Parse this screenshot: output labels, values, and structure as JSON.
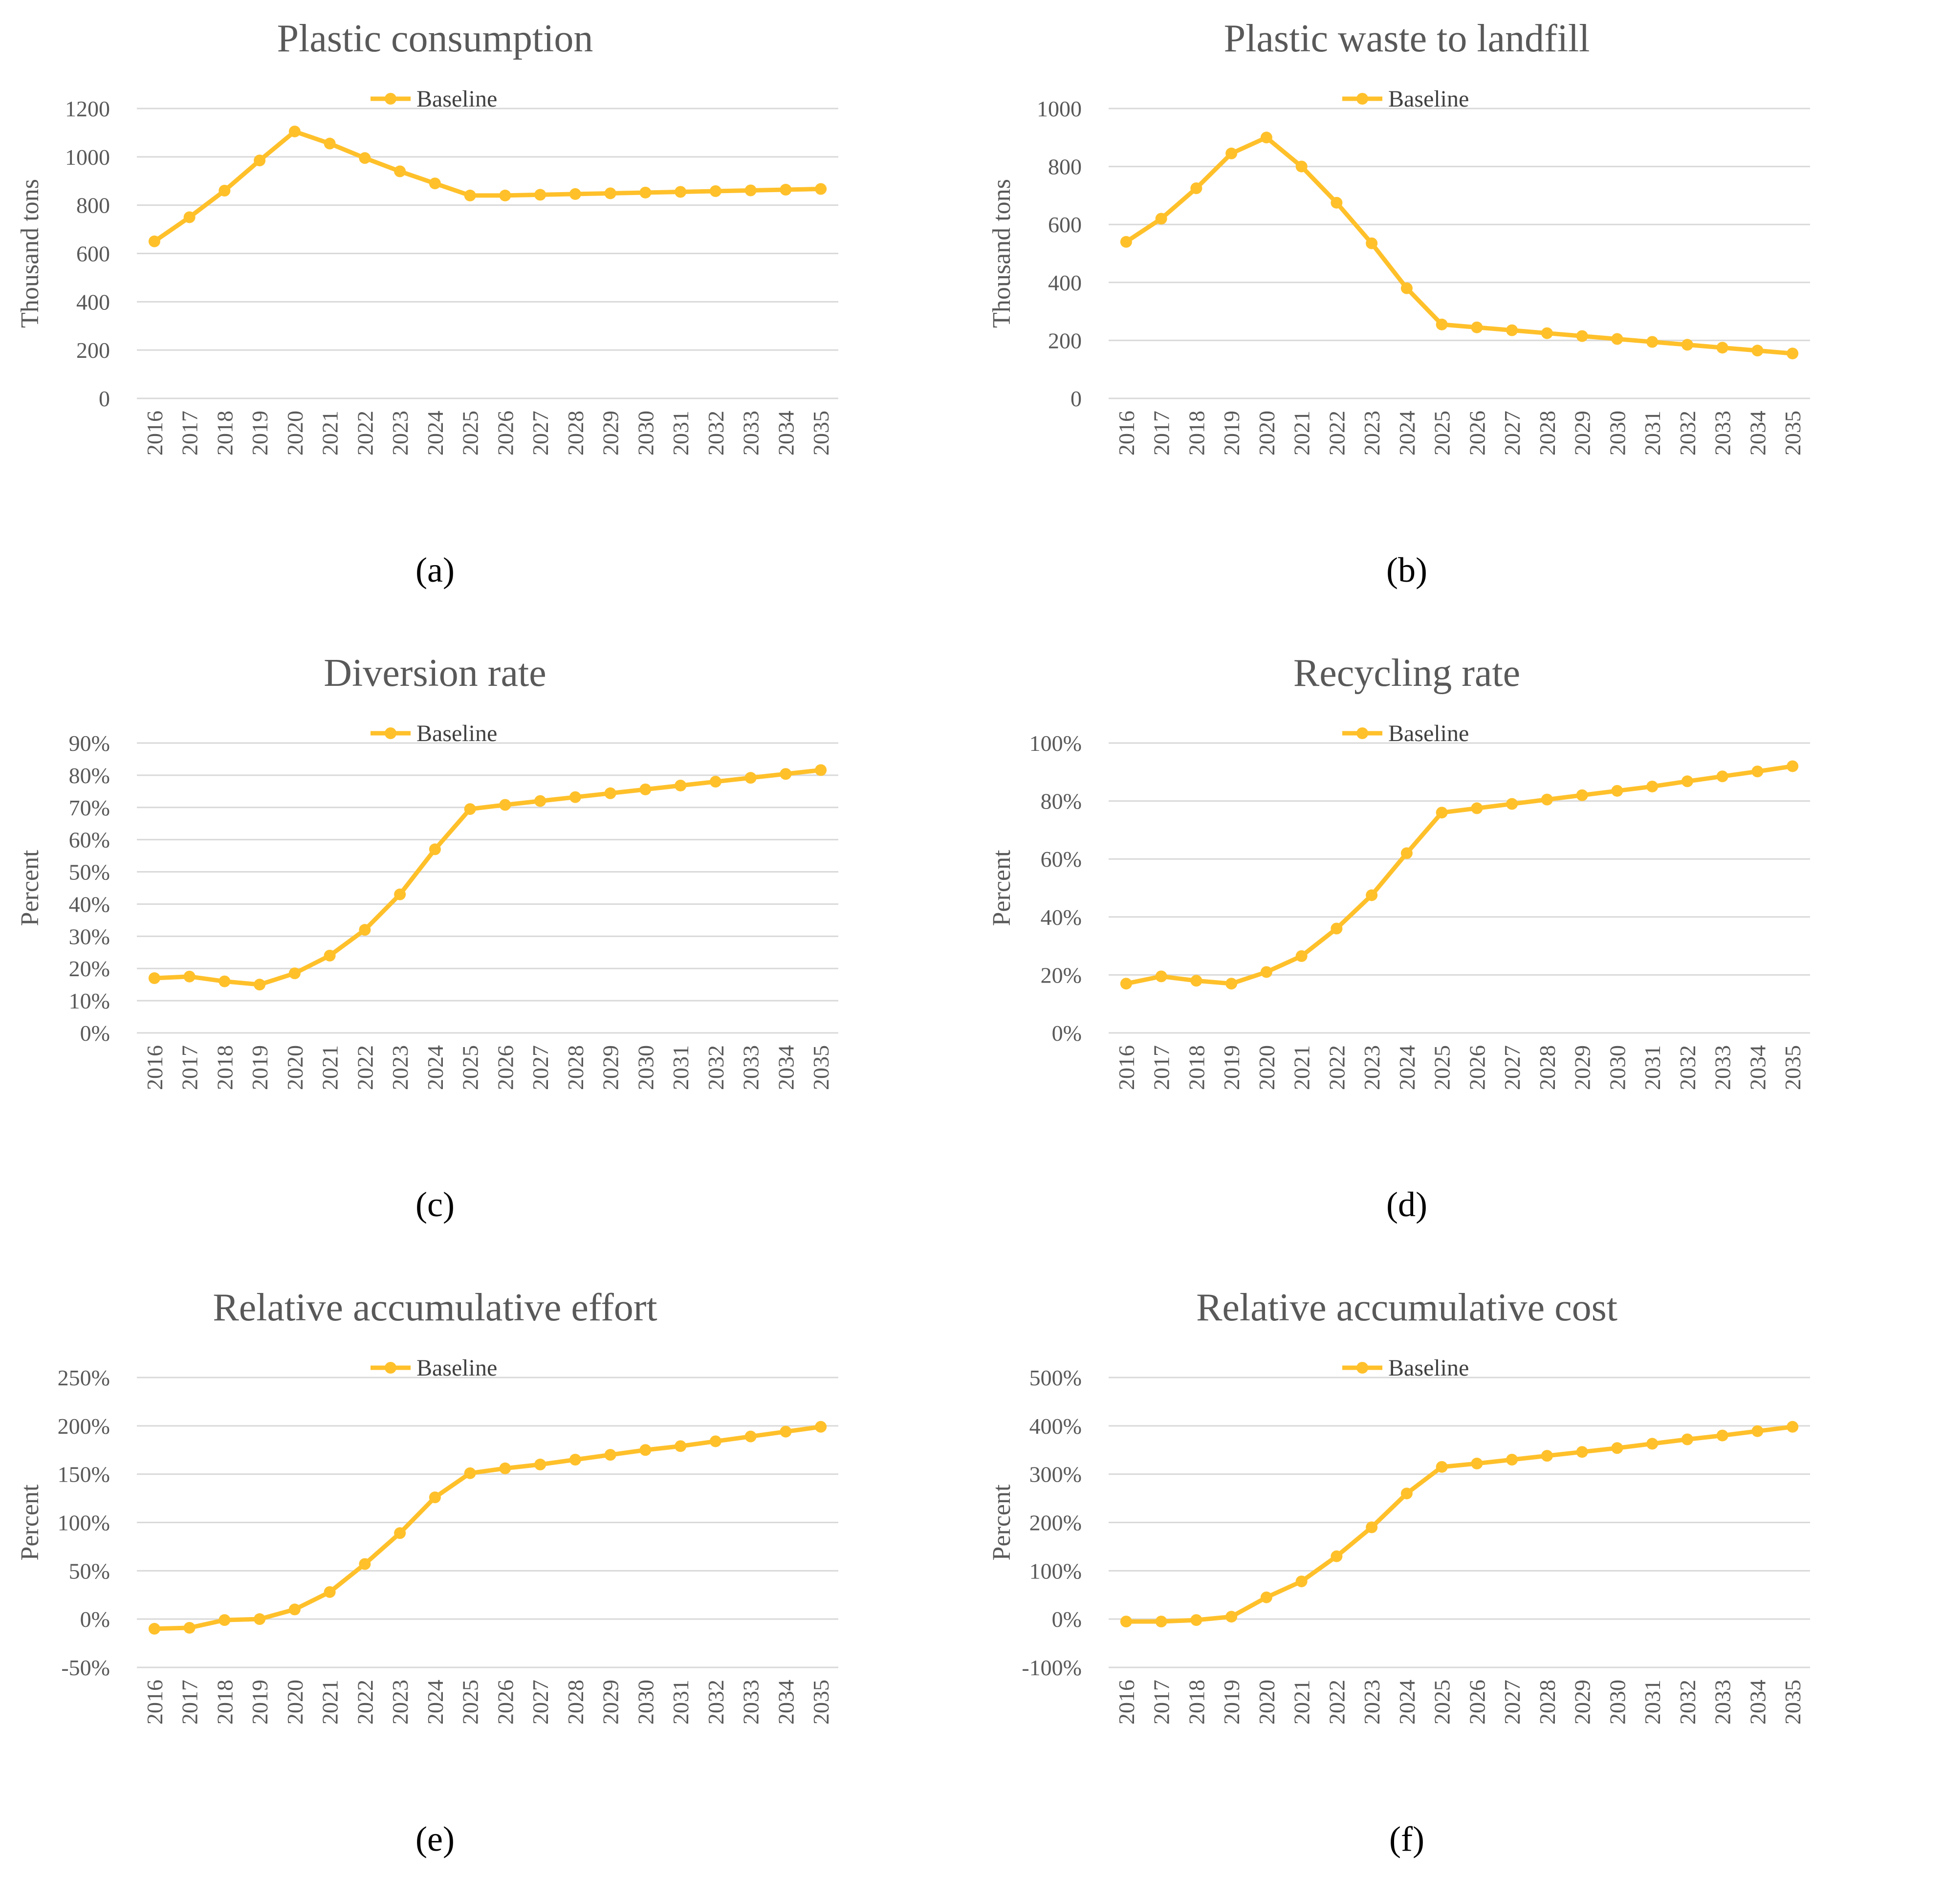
{
  "figure": {
    "series_color": "#FFC02A",
    "series_name": "Baseline"
  },
  "chart_data": [
    {
      "type": "line",
      "title": "Plastic consumption",
      "caption": "(a)",
      "xlabel": "",
      "ylabel": "Thousand tons",
      "legend": "top-center",
      "grid": true,
      "categories": [
        "2016",
        "2017",
        "2018",
        "2019",
        "2020",
        "2021",
        "2022",
        "2023",
        "2024",
        "2025",
        "2026",
        "2027",
        "2028",
        "2029",
        "2030",
        "2031",
        "2032",
        "2033",
        "2034",
        "2035"
      ],
      "ylim": [
        0,
        1200
      ],
      "yticks": [
        0,
        200,
        400,
        600,
        800,
        1000,
        1200
      ],
      "yticklabels": [
        "0",
        "200",
        "400",
        "600",
        "800",
        "1000",
        "1200"
      ],
      "series": [
        {
          "name": "Baseline",
          "values": [
            650,
            750,
            860,
            985,
            1105,
            1055,
            995,
            940,
            890,
            840,
            840,
            843,
            846,
            849,
            852,
            855,
            858,
            861,
            864,
            867
          ]
        }
      ]
    },
    {
      "type": "line",
      "title": "Plastic waste to landfill",
      "caption": "(b)",
      "xlabel": "",
      "ylabel": "Thousand tons",
      "legend": "top-center",
      "grid": true,
      "categories": [
        "2016",
        "2017",
        "2018",
        "2019",
        "2020",
        "2021",
        "2022",
        "2023",
        "2024",
        "2025",
        "2026",
        "2027",
        "2028",
        "2029",
        "2030",
        "2031",
        "2032",
        "2033",
        "2034",
        "2035"
      ],
      "ylim": [
        0,
        1000
      ],
      "yticks": [
        0,
        200,
        400,
        600,
        800,
        1000
      ],
      "yticklabels": [
        "0",
        "200",
        "400",
        "600",
        "800",
        "1000"
      ],
      "series": [
        {
          "name": "Baseline",
          "values": [
            540,
            620,
            725,
            845,
            900,
            800,
            675,
            535,
            380,
            255,
            245,
            235,
            225,
            215,
            205,
            195,
            185,
            175,
            165,
            155
          ]
        }
      ]
    },
    {
      "type": "line",
      "title": "Diversion rate",
      "caption": "(c)",
      "xlabel": "",
      "ylabel": "Percent",
      "legend": "top-center",
      "grid": true,
      "categories": [
        "2016",
        "2017",
        "2018",
        "2019",
        "2020",
        "2021",
        "2022",
        "2023",
        "2024",
        "2025",
        "2026",
        "2027",
        "2028",
        "2029",
        "2030",
        "2031",
        "2032",
        "2033",
        "2034",
        "2035"
      ],
      "ylim": [
        0,
        90
      ],
      "yticks": [
        0,
        10,
        20,
        30,
        40,
        50,
        60,
        70,
        80,
        90
      ],
      "yticklabels": [
        "0%",
        "10%",
        "20%",
        "30%",
        "40%",
        "50%",
        "60%",
        "70%",
        "80%",
        "90%"
      ],
      "series": [
        {
          "name": "Baseline",
          "values": [
            17,
            17.5,
            16,
            15,
            18.5,
            24,
            32,
            43,
            57,
            69.5,
            70.8,
            72,
            73.2,
            74.4,
            75.6,
            76.8,
            78,
            79.2,
            80.4,
            81.6
          ]
        }
      ]
    },
    {
      "type": "line",
      "title": "Recycling rate",
      "caption": "(d)",
      "xlabel": "",
      "ylabel": "Percent",
      "legend": "top-center",
      "grid": true,
      "categories": [
        "2016",
        "2017",
        "2018",
        "2019",
        "2020",
        "2021",
        "2022",
        "2023",
        "2024",
        "2025",
        "2026",
        "2027",
        "2028",
        "2029",
        "2030",
        "2031",
        "2032",
        "2033",
        "2034",
        "2035"
      ],
      "ylim": [
        0,
        100
      ],
      "yticks": [
        0,
        20,
        40,
        60,
        80,
        100
      ],
      "yticklabels": [
        "0%",
        "20%",
        "40%",
        "60%",
        "80%",
        "100%"
      ],
      "series": [
        {
          "name": "Baseline",
          "values": [
            17,
            19.5,
            18,
            17,
            21,
            26.5,
            36,
            47.5,
            62,
            76,
            77.5,
            79,
            80.5,
            82,
            83.5,
            85,
            86.8,
            88.5,
            90.2,
            92
          ]
        }
      ]
    },
    {
      "type": "line",
      "title": "Relative accumulative effort",
      "caption": "(e)",
      "xlabel": "",
      "ylabel": "Percent",
      "legend": "top-center",
      "grid": true,
      "categories": [
        "2016",
        "2017",
        "2018",
        "2019",
        "2020",
        "2021",
        "2022",
        "2023",
        "2024",
        "2025",
        "2026",
        "2027",
        "2028",
        "2029",
        "2030",
        "2031",
        "2032",
        "2033",
        "2034",
        "2035"
      ],
      "ylim": [
        -50,
        250
      ],
      "yticks": [
        -50,
        0,
        50,
        100,
        150,
        200,
        250
      ],
      "yticklabels": [
        "-50%",
        "0%",
        "50%",
        "100%",
        "150%",
        "200%",
        "250%"
      ],
      "series": [
        {
          "name": "Baseline",
          "values": [
            -10,
            -9,
            -1,
            0,
            10,
            28,
            57,
            89,
            126,
            151,
            156,
            160,
            165,
            170,
            175,
            179,
            184,
            189,
            194,
            199
          ]
        }
      ]
    },
    {
      "type": "line",
      "title": "Relative accumulative cost",
      "caption": "(f)",
      "xlabel": "",
      "ylabel": "Percent",
      "legend": "top-center",
      "grid": true,
      "categories": [
        "2016",
        "2017",
        "2018",
        "2019",
        "2020",
        "2021",
        "2022",
        "2023",
        "2024",
        "2025",
        "2026",
        "2027",
        "2028",
        "2029",
        "2030",
        "2031",
        "2032",
        "2033",
        "2034",
        "2035"
      ],
      "ylim": [
        -100,
        500
      ],
      "yticks": [
        -100,
        0,
        100,
        200,
        300,
        400,
        500
      ],
      "yticklabels": [
        "-100%",
        "0%",
        "100%",
        "200%",
        "300%",
        "400%",
        "500%"
      ],
      "series": [
        {
          "name": "Baseline",
          "values": [
            -5,
            -5,
            -2,
            5,
            45,
            78,
            130,
            190,
            260,
            315,
            322,
            330,
            338,
            346,
            354,
            363,
            372,
            380,
            389,
            398
          ]
        }
      ]
    }
  ]
}
